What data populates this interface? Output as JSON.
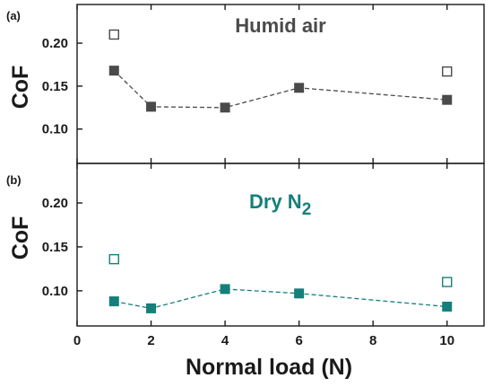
{
  "chart_data": {
    "type": "scatter",
    "xlabel": "Normal load (N)",
    "ylabel": "CoF",
    "xlim": [
      0,
      11
    ],
    "x_ticks": [
      "0",
      "2",
      "4",
      "6",
      "8",
      "10"
    ],
    "x_tick_values": [
      0,
      2,
      4,
      6,
      8,
      10
    ],
    "grid": false,
    "panels": [
      {
        "letter": "(a)",
        "title": "Humid air",
        "color": "#4a4a4a",
        "ylim": [
          0.06,
          0.245
        ],
        "y_ticks": [
          "0.10",
          "0.15",
          "0.20"
        ],
        "y_tick_values": [
          0.1,
          0.15,
          0.2
        ],
        "series": [
          {
            "style": "filled-dashed",
            "x": [
              1,
              2,
              4,
              6,
              10
            ],
            "y": [
              0.168,
              0.126,
              0.125,
              0.148,
              0.134
            ]
          },
          {
            "style": "open",
            "x": [
              1,
              10
            ],
            "y": [
              0.21,
              0.167
            ]
          }
        ]
      },
      {
        "letter": "(b)",
        "title_main": "Dry N",
        "title_sub": "2",
        "color": "#157f7b",
        "ylim": [
          0.06,
          0.245
        ],
        "y_ticks": [
          "0.10",
          "0.15",
          "0.20"
        ],
        "y_tick_values": [
          0.1,
          0.15,
          0.2
        ],
        "series": [
          {
            "style": "filled-dashed",
            "x": [
              1,
              2,
              4,
              6,
              10
            ],
            "y": [
              0.088,
              0.08,
              0.102,
              0.097,
              0.082
            ]
          },
          {
            "style": "open",
            "x": [
              1,
              10
            ],
            "y": [
              0.136,
              0.11
            ]
          }
        ]
      }
    ]
  }
}
